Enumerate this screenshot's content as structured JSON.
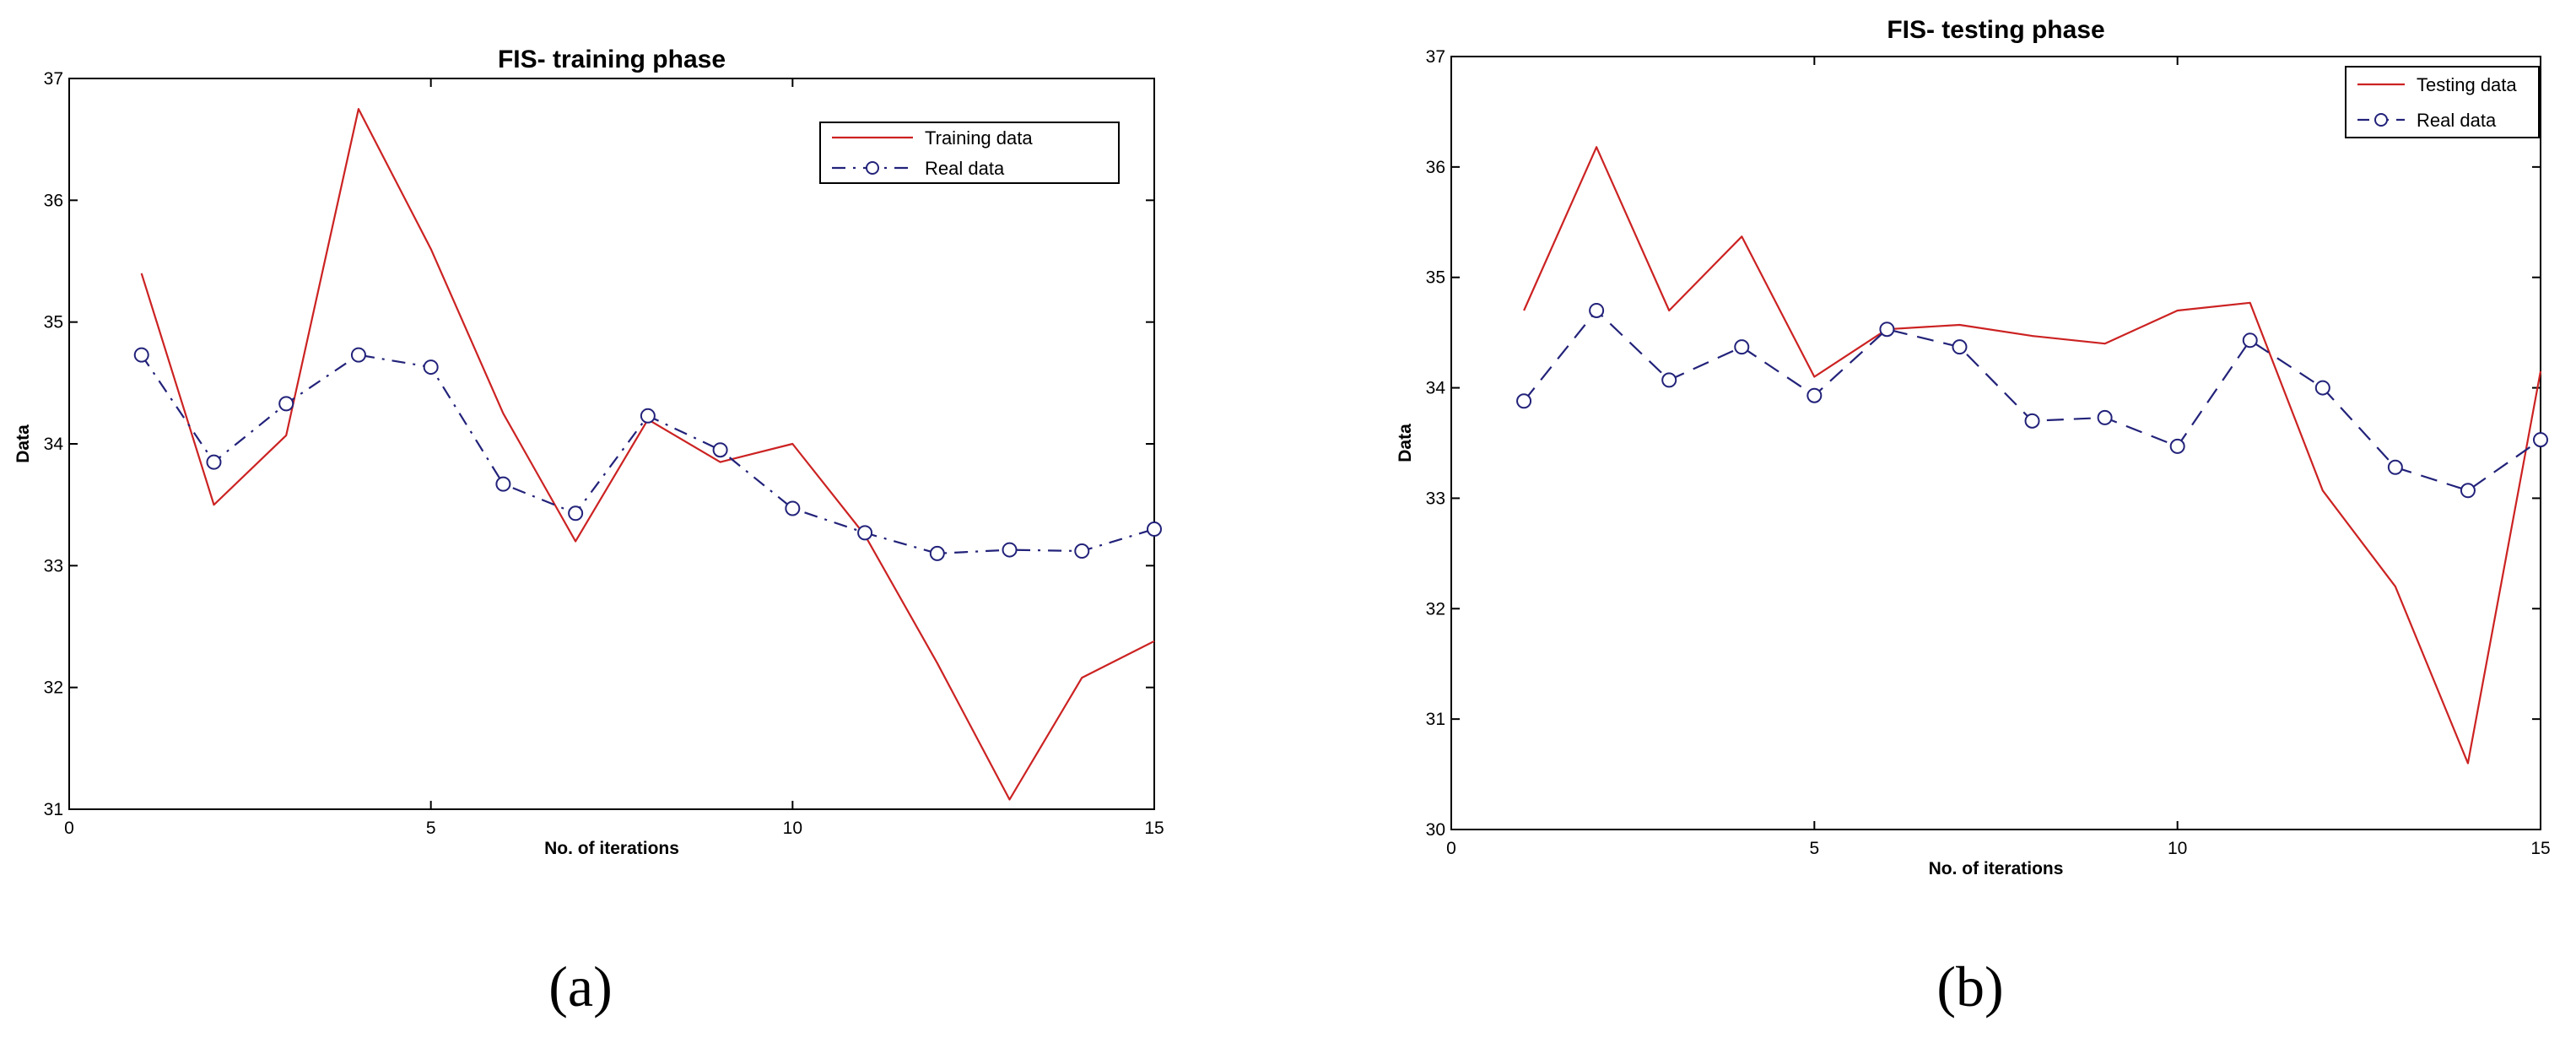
{
  "captions": {
    "a": "(a)",
    "b": "(b)"
  },
  "colors": {
    "training": "#cc2222",
    "testing": "#cc2222",
    "real": "#22227a"
  },
  "chart_data": [
    {
      "type": "line",
      "title": "FIS- training phase",
      "xlabel": "No. of iterations",
      "ylabel": "Data",
      "xlim": [
        0,
        15
      ],
      "ylim": [
        31,
        37
      ],
      "xticks": [
        0,
        5,
        10,
        15
      ],
      "yticks": [
        31,
        32,
        33,
        34,
        35,
        36,
        37
      ],
      "grid": false,
      "legend_position": "top-right",
      "x": [
        1,
        2,
        3,
        4,
        5,
        6,
        7,
        8,
        9,
        10,
        11,
        12,
        13,
        14,
        15
      ],
      "series": [
        {
          "name": "Training data",
          "style": "solid",
          "marker": "none",
          "values": [
            35.4,
            33.5,
            34.07,
            36.75,
            35.6,
            34.25,
            33.2,
            34.2,
            33.85,
            34.0,
            33.25,
            32.2,
            31.08,
            32.08,
            32.38
          ]
        },
        {
          "name": "Real data",
          "style": "dashdot",
          "marker": "circle",
          "values": [
            34.73,
            33.85,
            34.33,
            34.73,
            34.63,
            33.67,
            33.43,
            34.23,
            33.95,
            33.47,
            33.27,
            33.1,
            33.13,
            33.12,
            33.3
          ]
        }
      ]
    },
    {
      "type": "line",
      "title": "FIS- testing phase",
      "xlabel": "No. of iterations",
      "ylabel": "Data",
      "xlim": [
        0,
        15
      ],
      "ylim": [
        30,
        37
      ],
      "xticks": [
        0,
        5,
        10,
        15
      ],
      "yticks": [
        30,
        31,
        32,
        33,
        34,
        35,
        36,
        37
      ],
      "grid": false,
      "legend_position": "top-right",
      "x": [
        1,
        2,
        3,
        4,
        5,
        6,
        7,
        8,
        9,
        10,
        11,
        12,
        13,
        14,
        15
      ],
      "series": [
        {
          "name": "Testing data",
          "style": "solid",
          "marker": "none",
          "values": [
            34.7,
            36.18,
            34.7,
            35.37,
            34.1,
            34.53,
            34.57,
            34.47,
            34.4,
            34.7,
            34.77,
            33.07,
            32.2,
            30.6,
            34.15
          ]
        },
        {
          "name": "Real data",
          "style": "dashed",
          "marker": "circle",
          "values": [
            33.88,
            34.7,
            34.07,
            34.37,
            33.93,
            34.53,
            34.37,
            33.7,
            33.73,
            33.47,
            34.43,
            34.0,
            33.28,
            33.07,
            33.53
          ]
        }
      ]
    }
  ]
}
